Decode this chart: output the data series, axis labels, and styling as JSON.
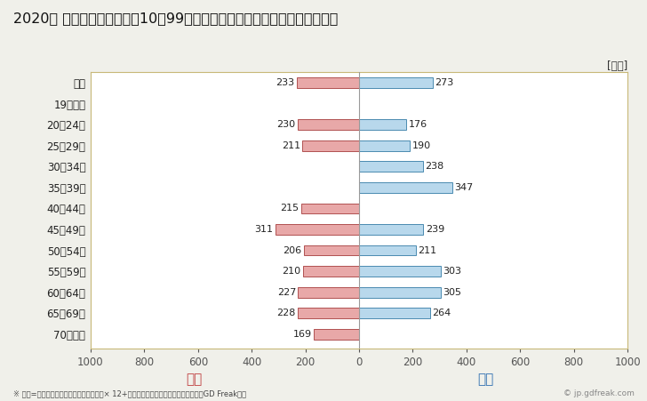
{
  "title": "2020年 民間企業（従業者数10～99人）フルタイム労働者の男女別平均年収",
  "ylabel_unit": "[万円]",
  "categories": [
    "全体",
    "19歳以下",
    "20～24歳",
    "25～29歳",
    "30～34歳",
    "35～39歳",
    "40～44歳",
    "45～49歳",
    "50～54歳",
    "55～59歳",
    "60～64歳",
    "65～69歳",
    "70歳以上"
  ],
  "female_values": [
    233,
    0,
    230,
    211,
    0,
    0,
    215,
    311,
    206,
    210,
    227,
    228,
    169
  ],
  "male_values": [
    273,
    0,
    176,
    190,
    238,
    347,
    0,
    239,
    211,
    303,
    305,
    264,
    0
  ],
  "female_color": "#e8a8a8",
  "male_color": "#b8d8ec",
  "female_border_color": "#b05050",
  "male_border_color": "#4a8ab0",
  "female_label": "女性",
  "male_label": "男性",
  "female_label_color": "#c04040",
  "male_label_color": "#3070b0",
  "xlim": [
    -1000,
    1000
  ],
  "xticks": [
    -1000,
    -800,
    -600,
    -400,
    -200,
    0,
    200,
    400,
    600,
    800,
    1000
  ],
  "xtick_labels": [
    "1000",
    "800",
    "600",
    "400",
    "200",
    "0",
    "200",
    "400",
    "600",
    "800",
    "1000"
  ],
  "footnote": "※ 年収=「きまって支給する現金給与額」× 12+「年間賞与その他特別給与額」としてGD Freak推計",
  "watermark": "© jp.gdfreak.com",
  "bg_color": "#f0f0ea",
  "plot_bg_color": "#ffffff",
  "bar_height": 0.5,
  "title_fontsize": 11.5,
  "tick_fontsize": 8.5,
  "label_fontsize": 11,
  "annotation_fontsize": 8,
  "spine_color": "#c8b878"
}
